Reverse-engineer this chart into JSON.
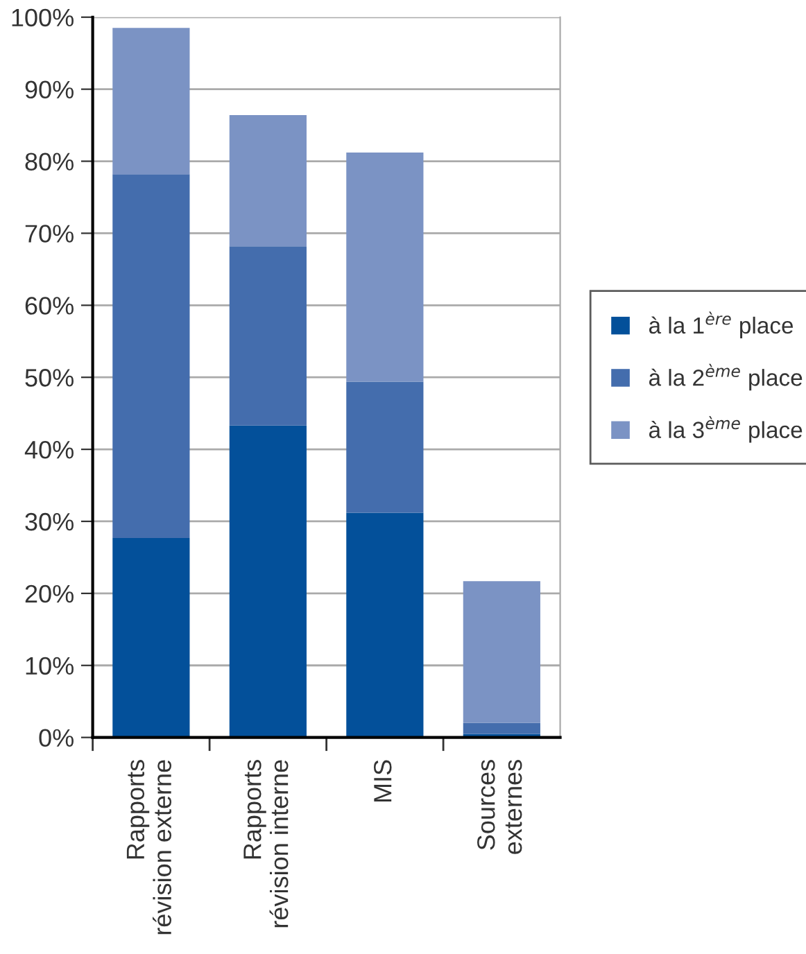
{
  "chart_data": {
    "type": "bar",
    "stacked": true,
    "categories": [
      "Rapports\nrévision externe",
      "Rapports\nrévision interne",
      "MIS",
      "Sources\nexternes"
    ],
    "series": [
      {
        "name": "à la 1$^{ère}$ place",
        "color": "#03509a",
        "values": [
          27.7,
          43.3,
          31.2,
          0.5
        ]
      },
      {
        "name": "à la 2$^{ème}$ place",
        "color": "#446dad",
        "values": [
          50.5,
          24.9,
          18.2,
          1.5
        ]
      },
      {
        "name": "à la 3$^{ème}$ place",
        "color": "#7b93c4",
        "values": [
          20.3,
          18.2,
          31.8,
          19.7
        ]
      }
    ],
    "ylim": [
      0,
      100
    ],
    "yticks": [
      {
        "value": 0,
        "label": "0%"
      },
      {
        "value": 10,
        "label": "10%"
      },
      {
        "value": 20,
        "label": "20%"
      },
      {
        "value": 30,
        "label": "30%"
      },
      {
        "value": 40,
        "label": "40%"
      },
      {
        "value": 50,
        "label": "50%"
      },
      {
        "value": 60,
        "label": "60%"
      },
      {
        "value": 70,
        "label": "70%"
      },
      {
        "value": 80,
        "label": "80%"
      },
      {
        "value": 90,
        "label": "90%"
      },
      {
        "value": 100,
        "label": "100%"
      }
    ],
    "grid": "y",
    "legend": "right"
  }
}
